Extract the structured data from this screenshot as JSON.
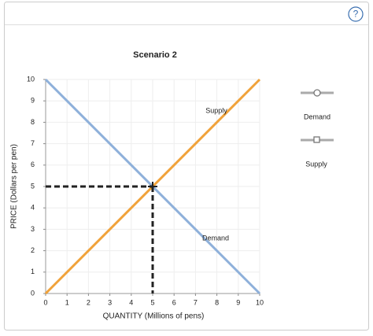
{
  "ui": {
    "help": "?"
  },
  "chart_data": {
    "type": "line",
    "title": "Scenario 2",
    "x_label": "QUANTITY (Millions of pens)",
    "y_label": "PRICE (Dollars per pen)",
    "x": [
      0,
      10
    ],
    "series": [
      {
        "name": "Demand",
        "color": "#8eb0da",
        "values": [
          10,
          0
        ]
      },
      {
        "name": "Supply",
        "color": "#f0a23a",
        "values": [
          0,
          10
        ]
      }
    ],
    "equilibrium": {
      "x": 5,
      "y": 5
    },
    "xlim": [
      0,
      10
    ],
    "ylim": [
      0,
      10
    ],
    "xticks": [
      0,
      1,
      2,
      3,
      4,
      5,
      6,
      7,
      8,
      9,
      10
    ],
    "yticks": [
      0,
      1,
      2,
      3,
      4,
      5,
      6,
      7,
      8,
      9,
      10
    ],
    "grid": true
  }
}
